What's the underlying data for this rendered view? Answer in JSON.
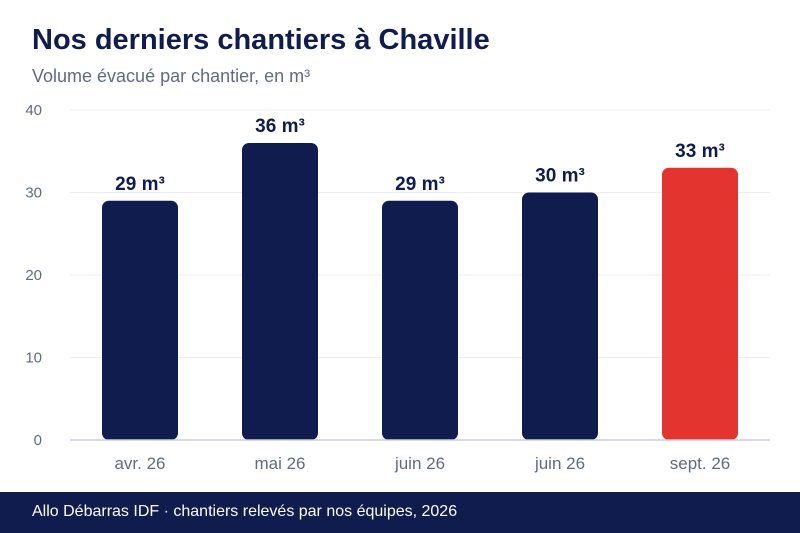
{
  "title": "Nos derniers chantiers à Chaville",
  "subtitle": "Volume évacué par chantier, en m³",
  "footer": "Allo Débarras IDF · chantiers relevés par nos équipes, 2026",
  "colors": {
    "title": "#0f1c4d",
    "bar_default": "#0f1c4d",
    "bar_highlight": "#e3342f",
    "footer_bg": "#0f1c4d"
  },
  "chart_data": {
    "type": "bar",
    "categories": [
      "avr. 26",
      "mai 26",
      "juin 26",
      "juin 26",
      "sept. 26"
    ],
    "values": [
      29,
      36,
      29,
      30,
      33
    ],
    "value_labels": [
      "29 m³",
      "36 m³",
      "29 m³",
      "30 m³",
      "33 m³"
    ],
    "highlight_index": 4,
    "ylim": [
      0,
      40
    ],
    "yticks": [
      0,
      10,
      20,
      30,
      40
    ],
    "grid": true,
    "xlabel": "",
    "ylabel": ""
  }
}
